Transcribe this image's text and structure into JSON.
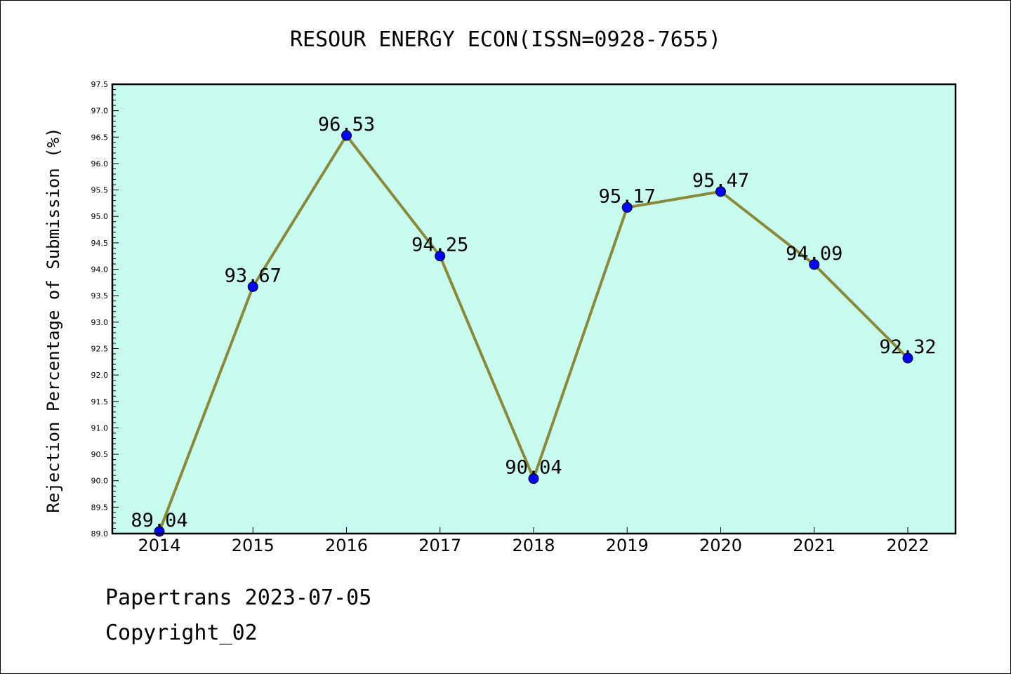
{
  "chart_data": {
    "type": "line",
    "title": "RESOUR ENERGY ECON(ISSN=0928-7655)",
    "xlabel": "",
    "ylabel": "Rejection Percentage of Submission (%)",
    "categories": [
      "2014",
      "2015",
      "2016",
      "2017",
      "2018",
      "2019",
      "2020",
      "2021",
      "2022"
    ],
    "series": [
      {
        "values": [
          89.04,
          93.67,
          96.53,
          94.25,
          90.04,
          95.17,
          95.47,
          94.09,
          92.32
        ],
        "labels": [
          "89.04",
          "93.67",
          "96.53",
          "94.25",
          "90.04",
          "95.17",
          "95.47",
          "94.09",
          "92.32"
        ]
      }
    ],
    "ylim": [
      89.0,
      97.5
    ],
    "yticks": [
      "89.0",
      "89.5",
      "90.0",
      "90.5",
      "91.0",
      "91.5",
      "92.0",
      "92.5",
      "93.0",
      "93.5",
      "94.0",
      "94.5",
      "95.0",
      "95.5",
      "96.0",
      "96.5",
      "97.0",
      "97.5"
    ],
    "grid": false,
    "colors": {
      "plot_background": "#c8fcee",
      "line": "#8b8a3a",
      "marker": "#0000ff"
    }
  },
  "footer": {
    "source": "Papertrans 2023-07-05",
    "copyright": "Copyright_02"
  }
}
